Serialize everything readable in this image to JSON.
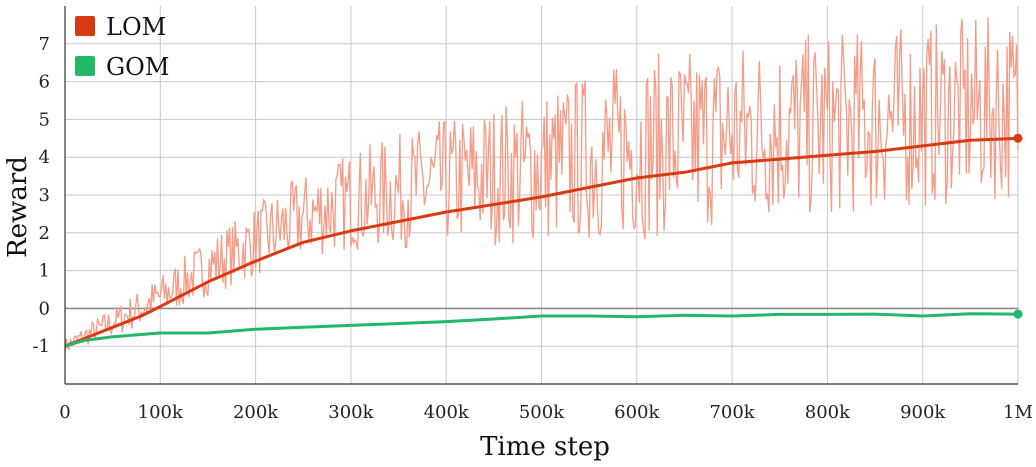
{
  "chart_data": {
    "type": "line",
    "xlabel": "Time step",
    "ylabel": "Reward",
    "xlim": [
      0,
      1000000
    ],
    "ylim": [
      -2,
      8
    ],
    "xticks": [
      0,
      100000,
      200000,
      300000,
      400000,
      500000,
      600000,
      700000,
      800000,
      900000,
      1000000
    ],
    "xtick_labels": [
      "0",
      "100k",
      "200k",
      "300k",
      "400k",
      "500k",
      "600k",
      "700k",
      "800k",
      "900k",
      "1M"
    ],
    "yticks": [
      -1,
      0,
      1,
      2,
      3,
      4,
      5,
      6,
      7
    ],
    "ytick_labels": [
      "-1",
      "0",
      "1",
      "2",
      "3",
      "4",
      "5",
      "6",
      "7"
    ],
    "grid": true,
    "legend_position": "top-left",
    "series": [
      {
        "name": "LOM",
        "color": "#d83a12",
        "raw_color": "#f79a86",
        "x": [
          0,
          20000,
          50000,
          80000,
          100000,
          150000,
          200000,
          250000,
          300000,
          350000,
          400000,
          450000,
          500000,
          550000,
          600000,
          650000,
          700000,
          750000,
          800000,
          850000,
          900000,
          950000,
          1000000
        ],
        "values": [
          -1.0,
          -0.8,
          -0.5,
          -0.2,
          0.05,
          0.7,
          1.25,
          1.75,
          2.05,
          2.3,
          2.55,
          2.75,
          2.95,
          3.2,
          3.45,
          3.6,
          3.85,
          3.95,
          4.05,
          4.15,
          4.3,
          4.45,
          4.5
        ]
      },
      {
        "name": "GOM",
        "color": "#22b86a",
        "x": [
          0,
          20000,
          50000,
          100000,
          150000,
          200000,
          250000,
          300000,
          350000,
          400000,
          450000,
          500000,
          550000,
          600000,
          650000,
          700000,
          750000,
          800000,
          850000,
          900000,
          950000,
          1000000
        ],
        "values": [
          -1.0,
          -0.85,
          -0.75,
          -0.65,
          -0.65,
          -0.55,
          -0.5,
          -0.45,
          -0.4,
          -0.35,
          -0.28,
          -0.2,
          -0.2,
          -0.22,
          -0.18,
          -0.2,
          -0.16,
          -0.16,
          -0.15,
          -0.2,
          -0.14,
          -0.15
        ]
      }
    ]
  }
}
